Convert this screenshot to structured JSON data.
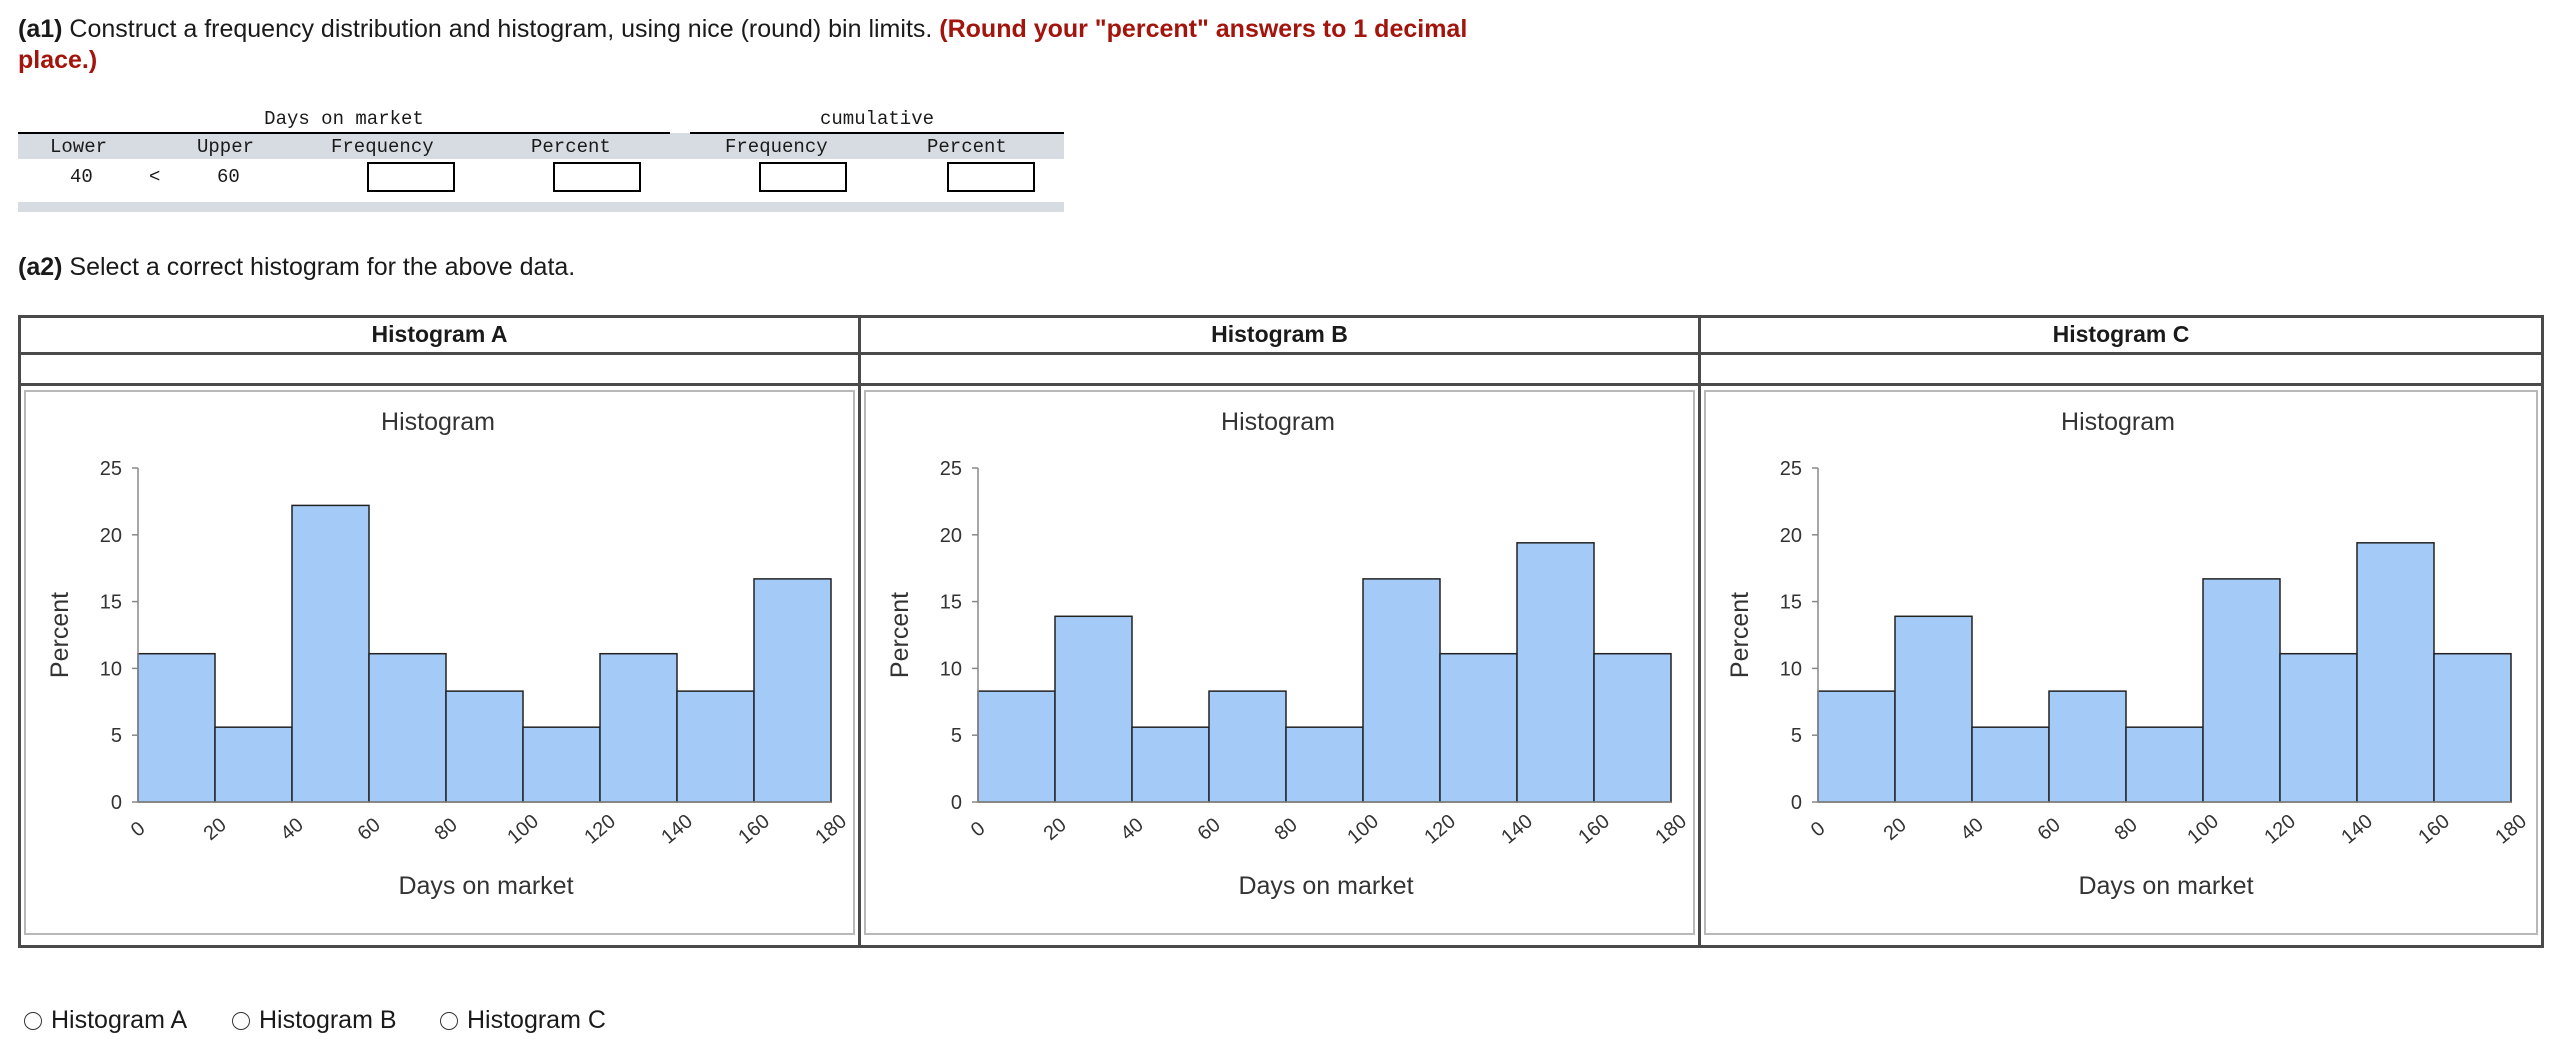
{
  "part_a1": {
    "label": "(a1)",
    "text": " Construct a frequency distribution and histogram, using nice (round) bin limits. ",
    "emphasis": "(Round your \"percent\" answers to 1 decimal place.)"
  },
  "table": {
    "group1_title": "Days on market",
    "group2_title": "cumulative",
    "headers": [
      "Lower",
      "Upper",
      "Frequency",
      "Percent",
      "Frequency",
      "Percent"
    ],
    "row": {
      "lower": "40",
      "op": "<",
      "upper": "60"
    },
    "inputs": {
      "frequency": "",
      "percent": "",
      "cum_frequency": "",
      "cum_percent": ""
    }
  },
  "part_a2": {
    "label": "(a2)",
    "text": " Select a correct histogram for the above data."
  },
  "histograms": [
    {
      "header": "Histogram A"
    },
    {
      "header": "Histogram B"
    },
    {
      "header": "Histogram C"
    }
  ],
  "chart_data": [
    {
      "type": "bar",
      "title": "Histogram",
      "xlabel": "Days on market",
      "ylabel": "Percent",
      "x_ticks": [
        0,
        20,
        40,
        60,
        80,
        100,
        120,
        140,
        160,
        180
      ],
      "y_ticks": [
        0,
        5,
        10,
        15,
        20,
        25
      ],
      "ylim": [
        0,
        25
      ],
      "xlim": [
        0,
        180
      ],
      "bins": [
        [
          0,
          20
        ],
        [
          20,
          40
        ],
        [
          40,
          60
        ],
        [
          60,
          80
        ],
        [
          80,
          100
        ],
        [
          100,
          120
        ],
        [
          120,
          140
        ],
        [
          140,
          160
        ],
        [
          160,
          180
        ]
      ],
      "values": [
        11.1,
        5.6,
        22.2,
        11.1,
        8.3,
        5.6,
        11.1,
        8.3,
        16.7
      ],
      "bar_color": "#a4cbf7",
      "grid": false
    },
    {
      "type": "bar",
      "title": "Histogram",
      "xlabel": "Days on market",
      "ylabel": "Percent",
      "x_ticks": [
        0,
        20,
        40,
        60,
        80,
        100,
        120,
        140,
        160,
        180
      ],
      "y_ticks": [
        0,
        5,
        10,
        15,
        20,
        25
      ],
      "ylim": [
        0,
        25
      ],
      "xlim": [
        0,
        180
      ],
      "bins": [
        [
          0,
          20
        ],
        [
          20,
          40
        ],
        [
          40,
          60
        ],
        [
          60,
          80
        ],
        [
          80,
          100
        ],
        [
          100,
          120
        ],
        [
          120,
          140
        ],
        [
          140,
          160
        ],
        [
          160,
          180
        ]
      ],
      "values": [
        8.3,
        13.9,
        5.6,
        8.3,
        5.6,
        16.7,
        11.1,
        19.4,
        11.1
      ],
      "bar_color": "#a4cbf7",
      "grid": false
    },
    {
      "type": "bar",
      "title": "Histogram",
      "xlabel": "Days on market",
      "ylabel": "Percent",
      "x_ticks": [
        0,
        20,
        40,
        60,
        80,
        100,
        120,
        140,
        160,
        180
      ],
      "y_ticks": [
        0,
        5,
        10,
        15,
        20,
        25
      ],
      "ylim": [
        0,
        25
      ],
      "xlim": [
        0,
        180
      ],
      "bins": [
        [
          0,
          20
        ],
        [
          20,
          40
        ],
        [
          40,
          60
        ],
        [
          60,
          80
        ],
        [
          80,
          100
        ],
        [
          100,
          120
        ],
        [
          120,
          140
        ],
        [
          140,
          160
        ],
        [
          160,
          180
        ]
      ],
      "values": [
        8.3,
        13.9,
        5.6,
        8.3,
        5.6,
        16.7,
        11.1,
        19.4,
        11.1
      ],
      "bar_color": "#a4cbf7",
      "grid": false
    }
  ],
  "options": [
    {
      "label": "Histogram A",
      "selected": false
    },
    {
      "label": "Histogram B",
      "selected": false
    },
    {
      "label": "Histogram C",
      "selected": false
    }
  ]
}
